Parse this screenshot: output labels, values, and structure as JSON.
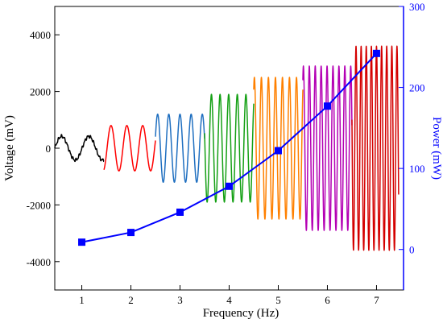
{
  "chart_data": {
    "type": "line",
    "xlabel": "Frequency (Hz)",
    "ylabel": "Voltage (mV)",
    "y2label": "Power (mW)",
    "xlim": [
      0.45,
      7.55
    ],
    "ylim": [
      -5000,
      5000
    ],
    "y2lim": [
      -50,
      300
    ],
    "x_ticks": [
      1,
      2,
      3,
      4,
      5,
      6,
      7
    ],
    "y_ticks": [
      -4000,
      -2000,
      0,
      2000,
      4000
    ],
    "y2_ticks": [
      0,
      100,
      200,
      300
    ],
    "grid": false,
    "legend": "none",
    "colors": {
      "axis": "#000000",
      "power_axis": "#0000ff",
      "power_line": "#0000ff"
    },
    "voltage_segments": [
      {
        "x_start": 0.45,
        "x_end": 1.45,
        "frequency": 1,
        "amplitude": 420,
        "color": "#000000"
      },
      {
        "x_start": 1.45,
        "x_end": 2.5,
        "frequency": 2,
        "amplitude": 800,
        "color": "#ff0000"
      },
      {
        "x_start": 2.5,
        "x_end": 3.5,
        "frequency": 3,
        "amplitude": 1200,
        "color": "#1f6fc0"
      },
      {
        "x_start": 3.5,
        "x_end": 4.5,
        "frequency": 4,
        "amplitude": 1900,
        "color": "#14a014"
      },
      {
        "x_start": 4.5,
        "x_end": 5.5,
        "frequency": 5,
        "amplitude": 2500,
        "color": "#ff8000"
      },
      {
        "x_start": 5.5,
        "x_end": 6.5,
        "frequency": 6,
        "amplitude": 2900,
        "color": "#b400b4"
      },
      {
        "x_start": 6.5,
        "x_end": 7.45,
        "frequency": 7,
        "amplitude": 3600,
        "color": "#d40000"
      }
    ],
    "series": [
      {
        "x": [
          1,
          2,
          3,
          4,
          5,
          6,
          7
        ],
        "values": [
          9,
          21,
          46,
          78,
          122,
          177,
          242
        ]
      }
    ]
  }
}
